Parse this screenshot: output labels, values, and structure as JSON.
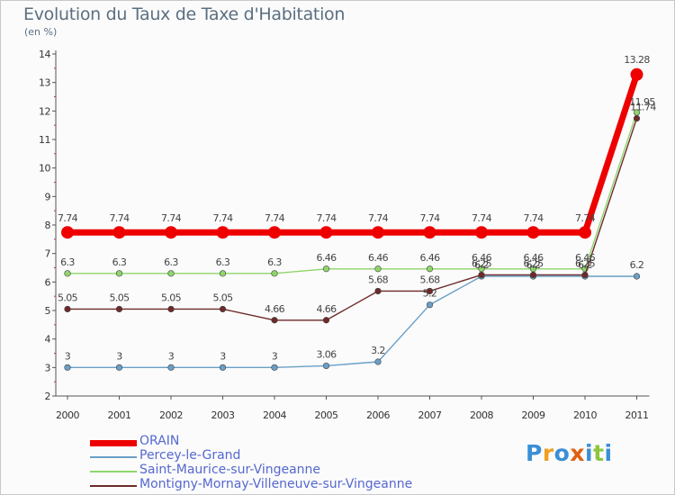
{
  "chart_data": {
    "type": "line",
    "title": "Evolution du Taux de Taxe d'Habitation",
    "subtitle": "(en %)",
    "categories": [
      "2000",
      "2001",
      "2002",
      "2003",
      "2004",
      "2005",
      "2006",
      "2007",
      "2008",
      "2009",
      "2010",
      "2011"
    ],
    "ylim": [
      2,
      14
    ],
    "yticks": [
      "2",
      "3",
      "4",
      "5",
      "6",
      "7",
      "8",
      "9",
      "10",
      "11",
      "12",
      "13",
      "14"
    ],
    "grid": false,
    "legend_position": "bottom",
    "series": [
      {
        "name": "ORAIN",
        "color": "#ee0000",
        "values": [
          7.74,
          7.74,
          7.74,
          7.74,
          7.74,
          7.74,
          7.74,
          7.74,
          7.74,
          7.74,
          7.74,
          13.28
        ],
        "labels": [
          "7.74",
          "7.74",
          "7.74",
          "7.74",
          "7.74",
          "7.74",
          "7.74",
          "7.74",
          "7.74",
          "7.74",
          "7.74",
          "13.28"
        ]
      },
      {
        "name": "Percey-le-Grand",
        "color": "#6a9fc6",
        "values": [
          3,
          3,
          3,
          3,
          3,
          3.06,
          3.2,
          5.2,
          6.2,
          6.2,
          6.2,
          6.2
        ],
        "labels": [
          "3",
          "3",
          "3",
          "3",
          "3",
          "3.06",
          "3.2",
          "5.2",
          "6.2",
          "6.2",
          "6.2",
          "6.2"
        ]
      },
      {
        "name": "Saint-Maurice-sur-Vingeanne",
        "color": "#8ed66a",
        "values": [
          6.3,
          6.3,
          6.3,
          6.3,
          6.3,
          6.46,
          6.46,
          6.46,
          6.46,
          6.46,
          6.46,
          11.95
        ],
        "labels": [
          "6.3",
          "6.3",
          "6.3",
          "6.3",
          "6.3",
          "6.46",
          "6.46",
          "6.46",
          "6.46",
          "6.46",
          "6.46",
          "11.95"
        ]
      },
      {
        "name": "Montigny-Mornay-Villeneuve-sur-Vingeanne",
        "color": "#6e2a2a",
        "values": [
          5.05,
          5.05,
          5.05,
          5.05,
          4.66,
          4.66,
          5.68,
          5.68,
          6.25,
          6.25,
          6.25,
          11.74
        ],
        "labels": [
          "5.05",
          "5.05",
          "5.05",
          "5.05",
          "4.66",
          "4.66",
          "5.68",
          "5.68",
          "6.25",
          "6.25",
          "6.25",
          "11.74"
        ]
      }
    ]
  },
  "logo": {
    "text": "Proxiti",
    "colors": [
      "#3a8fd6",
      "#f0a020",
      "#3a8fd6",
      "#e06010",
      "#3a8fd6",
      "#8cc63f",
      "#3a8fd6"
    ]
  }
}
